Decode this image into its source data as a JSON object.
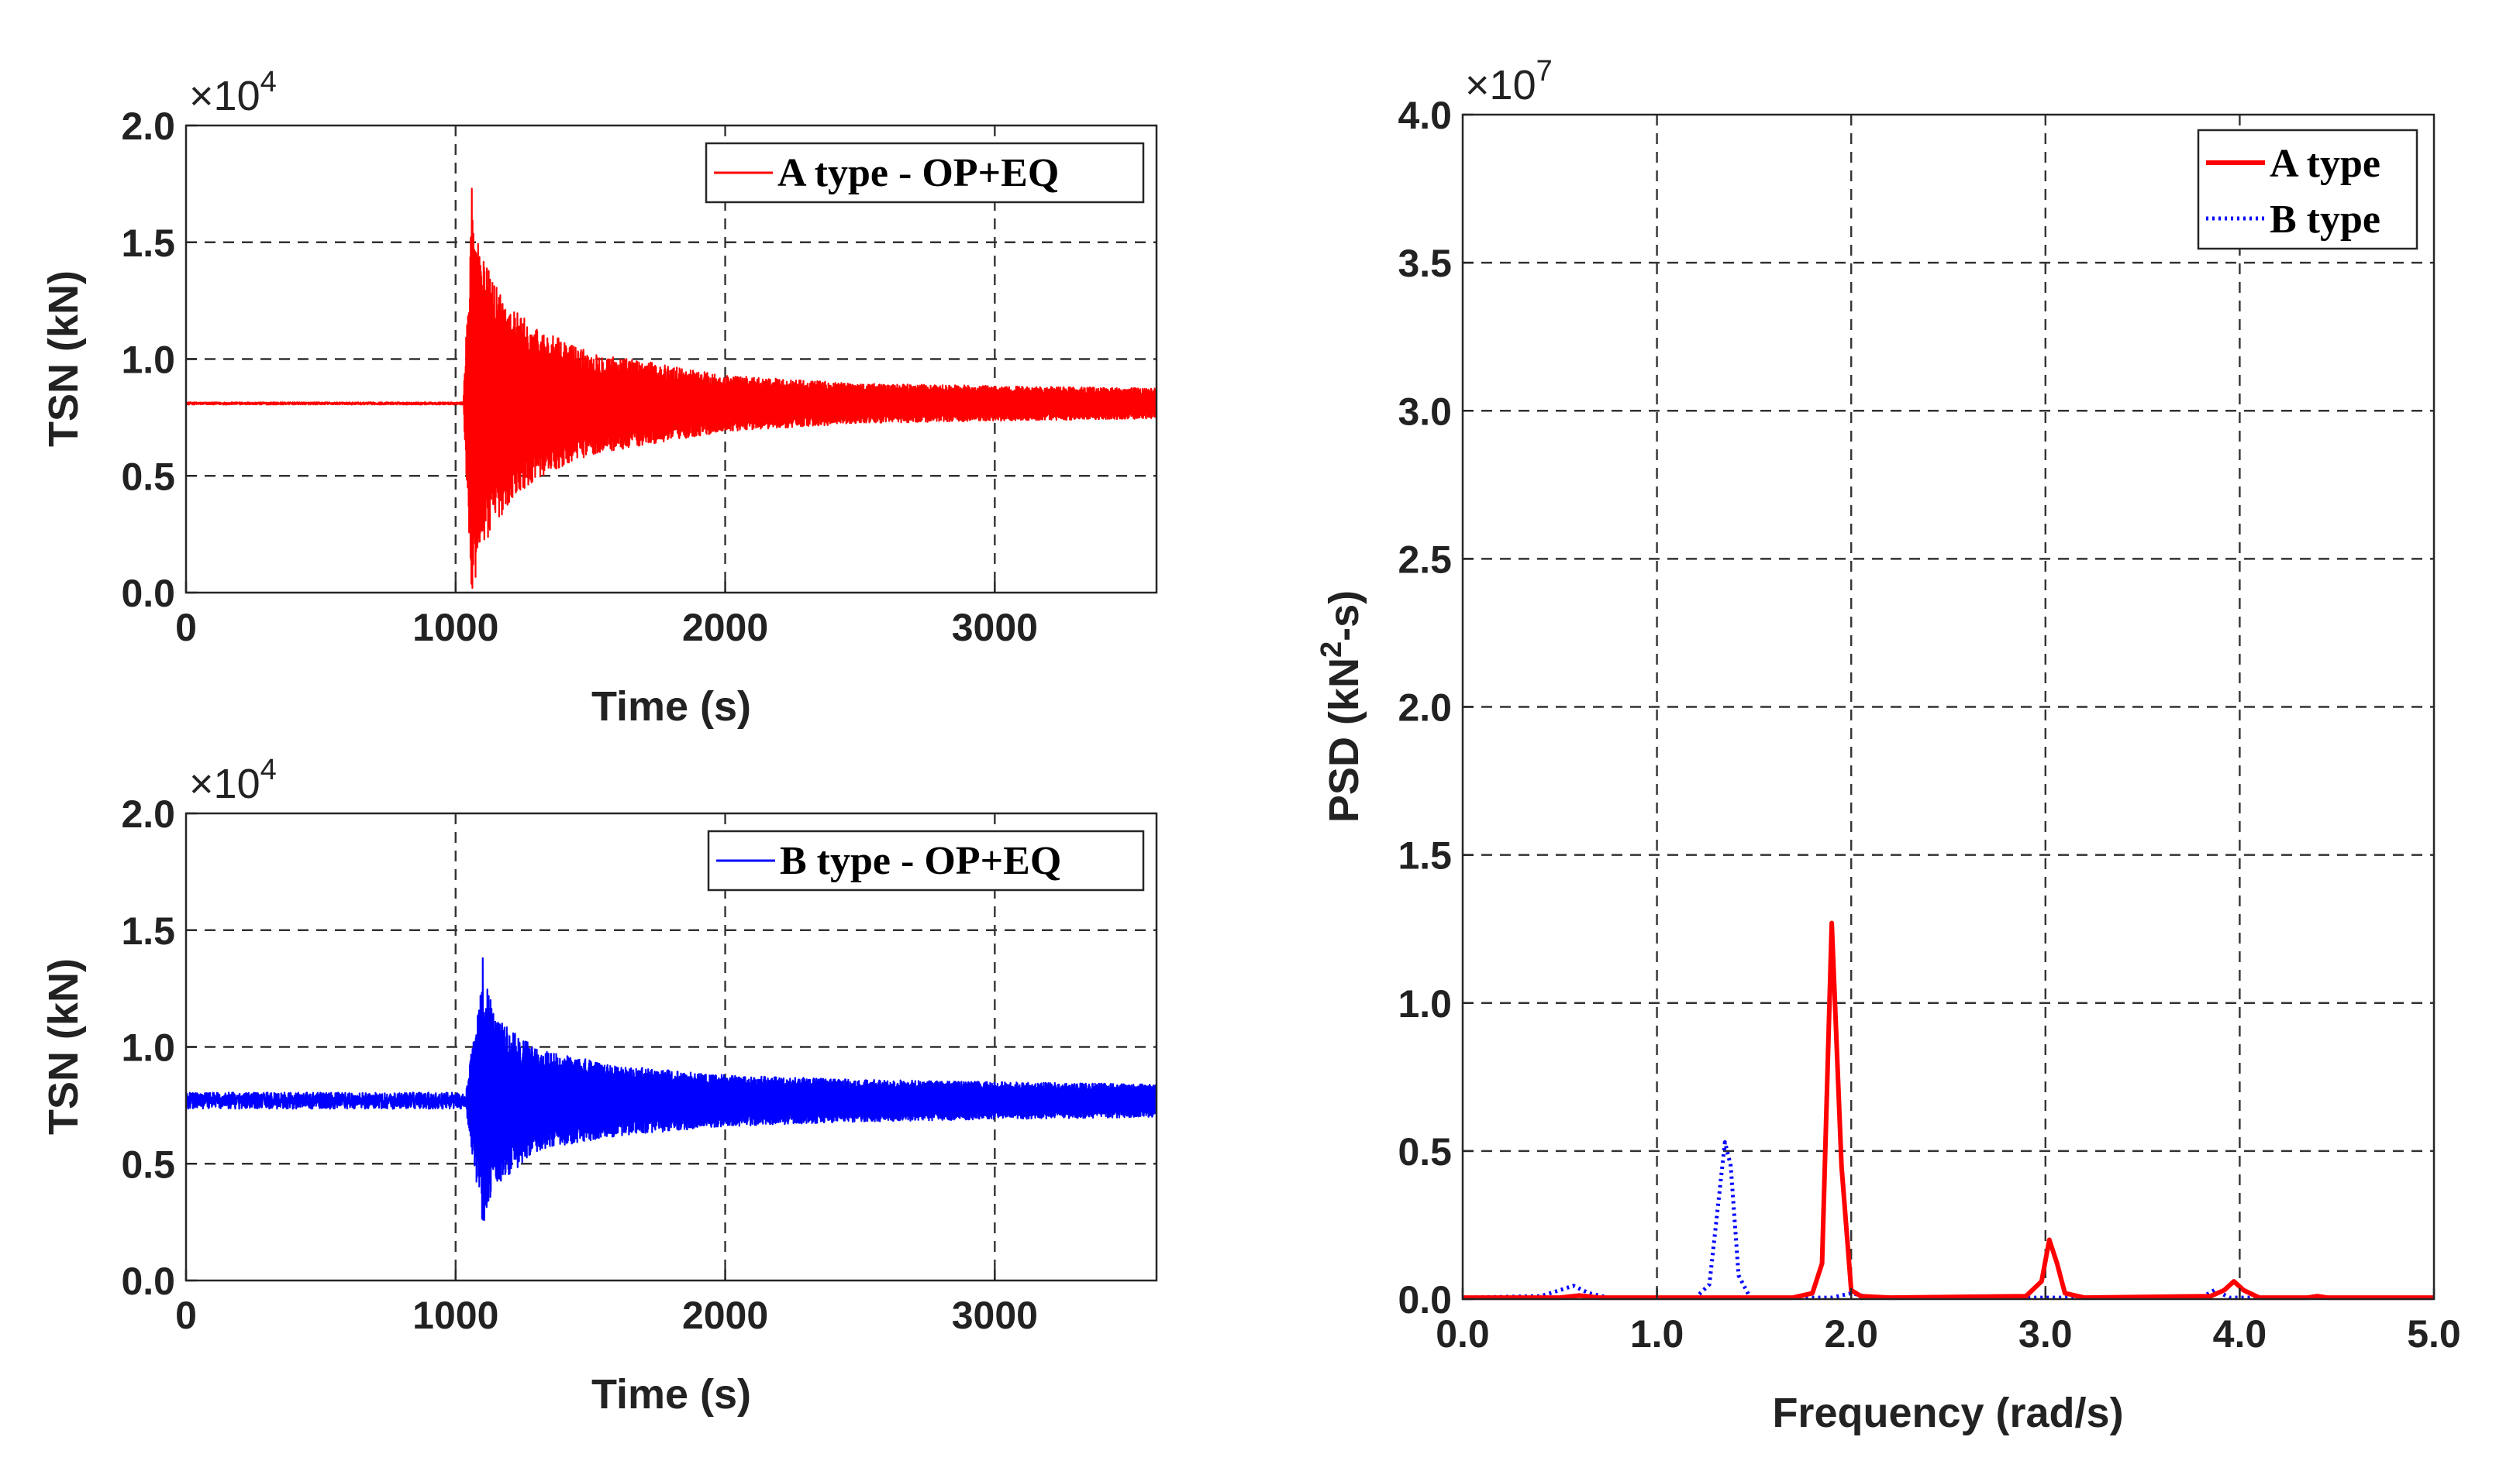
{
  "figure": {
    "colors": {
      "a_type": "#ff0000",
      "b_type": "#0000ff",
      "axis": "#262626",
      "grid": "#333333"
    }
  },
  "chart_data": [
    {
      "id": "tsn_a",
      "type": "line",
      "title": "",
      "xlabel": "Time (s)",
      "ylabel": "TSN (kN)",
      "exponent": "×10",
      "exponent_power": "4",
      "xlim": [
        0,
        3600
      ],
      "ylim": [
        0,
        2.0
      ],
      "xticks": [
        0,
        1000,
        2000,
        3000
      ],
      "xtick_labels": [
        "0",
        "1000",
        "2000",
        "3000"
      ],
      "yticks": [
        0,
        0.5,
        1.0,
        1.5,
        2.0
      ],
      "ytick_labels": [
        "0.0",
        "0.5",
        "1.0",
        "1.5",
        "2.0"
      ],
      "grid": true,
      "legend": "top-right",
      "series": [
        {
          "name": "A type - OP+EQ",
          "color": "#ff0000",
          "style": "solid",
          "baseline": 0.81,
          "pre_noise": 0.005,
          "event_start": 1030,
          "envelope": [
            [
              1030,
              0.05
            ],
            [
              1060,
              0.86
            ],
            [
              1100,
              0.62
            ],
            [
              1200,
              0.42
            ],
            [
              1300,
              0.32
            ],
            [
              1500,
              0.22
            ],
            [
              2000,
              0.12
            ],
            [
              2500,
              0.085
            ],
            [
              3000,
              0.075
            ],
            [
              3600,
              0.065
            ]
          ],
          "peak_max": 1.73,
          "peak_min": 0.02
        }
      ]
    },
    {
      "id": "tsn_b",
      "type": "line",
      "title": "",
      "xlabel": "Time (s)",
      "ylabel": "TSN (kN)",
      "exponent": "×10",
      "exponent_power": "4",
      "xlim": [
        0,
        3600
      ],
      "ylim": [
        0,
        2.0
      ],
      "xticks": [
        0,
        1000,
        2000,
        3000
      ],
      "xtick_labels": [
        "0",
        "1000",
        "2000",
        "3000"
      ],
      "yticks": [
        0,
        0.5,
        1.0,
        1.5,
        2.0
      ],
      "ytick_labels": [
        "0.0",
        "0.5",
        "1.0",
        "1.5",
        "2.0"
      ],
      "grid": true,
      "legend": "top-right",
      "series": [
        {
          "name": "B type - OP+EQ",
          "color": "#0000ff",
          "style": "solid",
          "baseline": 0.77,
          "pre_noise": 0.035,
          "event_start": 1040,
          "envelope": [
            [
              1040,
              0.05
            ],
            [
              1100,
              0.55
            ],
            [
              1150,
              0.36
            ],
            [
              1300,
              0.22
            ],
            [
              1600,
              0.15
            ],
            [
              2000,
              0.11
            ],
            [
              2500,
              0.09
            ],
            [
              3000,
              0.08
            ],
            [
              3600,
              0.07
            ]
          ],
          "peak_max": 1.38,
          "peak_min": 0.26
        }
      ]
    },
    {
      "id": "psd",
      "type": "line",
      "title": "",
      "xlabel": "Frequency (rad/s)",
      "ylabel": "PSD (kN",
      "ylabel_sup": "2",
      "ylabel_tail": "-s)",
      "exponent": "×10",
      "exponent_power": "7",
      "xlim": [
        0,
        5.0
      ],
      "ylim": [
        0,
        4.0
      ],
      "xticks": [
        0,
        1.0,
        2.0,
        3.0,
        4.0,
        5.0
      ],
      "xtick_labels": [
        "0.0",
        "1.0",
        "2.0",
        "3.0",
        "4.0",
        "5.0"
      ],
      "yticks": [
        0,
        0.5,
        1.0,
        1.5,
        2.0,
        2.5,
        3.0,
        3.5,
        4.0
      ],
      "ytick_labels": [
        "0.0",
        "0.5",
        "1.0",
        "1.5",
        "2.0",
        "2.5",
        "3.0",
        "3.5",
        "4.0"
      ],
      "grid": true,
      "legend": "top-right",
      "series": [
        {
          "name": "A type",
          "color": "#ff0000",
          "style": "solid",
          "x": [
            0.0,
            0.5,
            0.6,
            0.7,
            1.7,
            1.8,
            1.85,
            1.9,
            1.95,
            2.0,
            2.05,
            2.2,
            2.9,
            2.98,
            3.02,
            3.06,
            3.1,
            3.2,
            3.85,
            3.92,
            3.97,
            4.02,
            4.1,
            4.35,
            4.4,
            4.45,
            5.0
          ],
          "y": [
            0.005,
            0.005,
            0.012,
            0.005,
            0.005,
            0.02,
            0.12,
            1.27,
            0.45,
            0.03,
            0.01,
            0.005,
            0.01,
            0.06,
            0.2,
            0.12,
            0.02,
            0.005,
            0.01,
            0.03,
            0.06,
            0.03,
            0.005,
            0.005,
            0.01,
            0.005,
            0.005
          ]
        },
        {
          "name": "B type",
          "color": "#0000ff",
          "style": "dotted",
          "x": [
            0.0,
            0.4,
            0.5,
            0.57,
            0.65,
            0.75,
            1.2,
            1.27,
            1.32,
            1.35,
            1.38,
            1.42,
            1.48,
            1.9,
            2.0,
            2.1,
            3.8,
            3.87,
            3.95,
            5.0
          ],
          "y": [
            0.005,
            0.01,
            0.03,
            0.045,
            0.02,
            0.005,
            0.005,
            0.05,
            0.35,
            0.53,
            0.45,
            0.08,
            0.005,
            0.005,
            0.02,
            0.005,
            0.005,
            0.03,
            0.005,
            0.005
          ]
        }
      ]
    }
  ]
}
